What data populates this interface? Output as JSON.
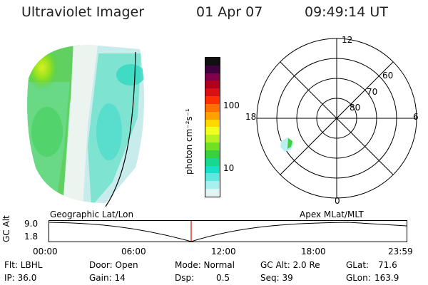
{
  "header": {
    "instrument": "Ultraviolet Imager",
    "date": "01 Apr 07",
    "time": "09:49:14 UT"
  },
  "colorbar": {
    "unit_label": "photon cm⁻²s⁻¹",
    "tick_labels": [
      "100",
      "10"
    ],
    "colors": [
      "#101010",
      "#400040",
      "#80004a",
      "#b00020",
      "#d81018",
      "#ff3000",
      "#ff7000",
      "#ffa000",
      "#ffd800",
      "#f0ff20",
      "#b8f020",
      "#70e020",
      "#38d040",
      "#18d890",
      "#18e0c8",
      "#60e8e0",
      "#a8f0f0",
      "#e0f4f4"
    ]
  },
  "polar_plot": {
    "mlt_labels": [
      "12",
      "18",
      "6",
      "0"
    ],
    "mlat_labels": [
      "60",
      "70",
      "80"
    ]
  },
  "coord_labels": {
    "left": "Geographic Lat/Lon",
    "right": "Apex  MLat/MLT"
  },
  "altitude_plot": {
    "ylabel": "GC Alt",
    "ytick_labels": [
      "9.0",
      "1.8"
    ],
    "xtick_labels": [
      "00:00",
      "06:00",
      "12:00",
      "18:00",
      "23:59"
    ],
    "current_time_marker_color": "#e00000"
  },
  "status": {
    "flt": "Flt: LBHL",
    "ip": "IP: 36.0",
    "door": "Door: Open",
    "gain": "Gain: 14",
    "mode": "Mode: Normal",
    "dsp_label": "Dsp:",
    "dsp_value": "0.5",
    "gc_alt": "GC Alt: 2.0 Re",
    "seq": "Seq: 39",
    "glat_label": "GLat:",
    "glat_value": "71.6",
    "glon_label": "GLon:",
    "glon_value": "163.9"
  }
}
